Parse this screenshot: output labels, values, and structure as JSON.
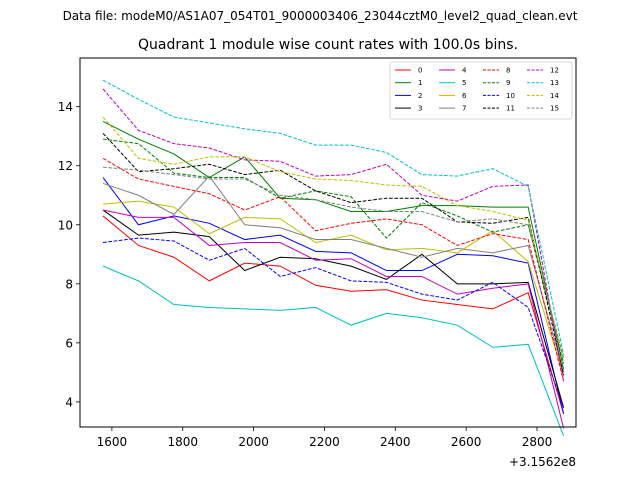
{
  "suptitle": "Data file: modeM0/AS1A07_054T01_9000003406_23044cztM0_level2_quad_clean.evt",
  "chart_data": {
    "type": "line",
    "title": "Quadrant 1 module wise count rates with 100.0s bins.",
    "xlabel": "",
    "ylabel": "",
    "x_offset_label": "+3.1562e8",
    "xlim": [
      1510,
      2910
    ],
    "ylim": [
      3.15,
      15.65
    ],
    "xticks": [
      1600,
      1800,
      2000,
      2200,
      2400,
      2600,
      2800
    ],
    "xtick_labels": [
      "1600",
      "1800",
      "2000",
      "2200",
      "2400",
      "2600",
      "2800"
    ],
    "yticks": [
      4,
      6,
      8,
      10,
      12,
      14
    ],
    "ytick_labels": [
      "4",
      "6",
      "8",
      "10",
      "12",
      "14"
    ],
    "grid": false,
    "legend_position": "top-right",
    "x": [
      1575,
      1675,
      1775,
      1875,
      1975,
      2075,
      2175,
      2275,
      2375,
      2475,
      2575,
      2675,
      2775,
      2875
    ],
    "series": [
      {
        "name": "0",
        "color": "#ff0000",
        "style": "solid",
        "values": [
          10.3,
          9.3,
          8.9,
          8.1,
          8.7,
          8.6,
          7.95,
          7.75,
          7.8,
          7.45,
          7.3,
          7.15,
          7.7,
          3.6
        ]
      },
      {
        "name": "1",
        "color": "#008000",
        "style": "solid",
        "values": [
          13.5,
          12.9,
          12.4,
          11.6,
          12.3,
          10.9,
          10.85,
          10.45,
          10.45,
          10.65,
          10.65,
          10.6,
          10.6,
          5.1
        ]
      },
      {
        "name": "2",
        "color": "#0000ff",
        "style": "solid",
        "values": [
          11.6,
          10.0,
          10.3,
          10.05,
          9.5,
          9.65,
          9.1,
          9.05,
          8.45,
          8.45,
          9.0,
          8.95,
          8.7,
          3.6
        ]
      },
      {
        "name": "3",
        "color": "#000000",
        "style": "solid",
        "values": [
          10.5,
          9.65,
          9.75,
          9.6,
          8.45,
          8.9,
          8.85,
          8.6,
          8.15,
          9.0,
          8.0,
          8.0,
          8.05,
          3.8
        ]
      },
      {
        "name": "4",
        "color": "#bf00bf",
        "style": "solid",
        "values": [
          10.5,
          10.25,
          10.25,
          9.3,
          9.4,
          9.4,
          8.8,
          8.85,
          8.25,
          8.25,
          7.65,
          7.85,
          8.0,
          3.1
        ]
      },
      {
        "name": "5",
        "color": "#00bfbf",
        "style": "solid",
        "values": [
          8.6,
          8.1,
          7.3,
          7.2,
          7.15,
          7.1,
          7.2,
          6.6,
          7.0,
          6.85,
          6.6,
          5.85,
          5.95,
          2.85
        ]
      },
      {
        "name": "6",
        "color": "#bfbf00",
        "style": "solid",
        "values": [
          10.7,
          10.8,
          10.6,
          9.7,
          10.25,
          10.2,
          9.4,
          9.65,
          9.15,
          9.2,
          9.05,
          9.8,
          8.75,
          4.9
        ]
      },
      {
        "name": "7",
        "color": "#808080",
        "style": "solid",
        "values": [
          11.4,
          11.0,
          10.35,
          11.65,
          10.0,
          9.9,
          9.5,
          9.5,
          9.2,
          8.9,
          9.2,
          9.05,
          9.3,
          5.0
        ]
      },
      {
        "name": "8",
        "color": "#ff0000",
        "style": "dashed",
        "values": [
          12.25,
          11.55,
          11.3,
          11.05,
          10.5,
          10.95,
          9.8,
          10.05,
          10.2,
          10.0,
          9.3,
          9.7,
          9.5,
          4.7
        ]
      },
      {
        "name": "9",
        "color": "#008000",
        "style": "dashed",
        "values": [
          12.9,
          12.75,
          11.75,
          11.6,
          11.6,
          10.9,
          11.15,
          10.95,
          9.55,
          10.75,
          10.3,
          9.75,
          10.0,
          5.3
        ]
      },
      {
        "name": "10",
        "color": "#0000ff",
        "style": "dashed",
        "values": [
          9.4,
          9.55,
          9.45,
          8.8,
          9.2,
          8.25,
          8.55,
          8.1,
          8.05,
          7.65,
          7.45,
          8.05,
          7.2,
          3.8
        ]
      },
      {
        "name": "11",
        "color": "#000000",
        "style": "dashed",
        "values": [
          13.1,
          11.8,
          11.9,
          12.05,
          11.7,
          11.85,
          11.15,
          10.75,
          10.9,
          10.9,
          10.1,
          10.05,
          10.25,
          4.9
        ]
      },
      {
        "name": "12",
        "color": "#bf00bf",
        "style": "dashed",
        "values": [
          14.6,
          13.2,
          12.75,
          12.6,
          12.2,
          12.15,
          11.65,
          11.7,
          12.05,
          11.0,
          10.8,
          11.3,
          11.35,
          4.7
        ]
      },
      {
        "name": "13",
        "color": "#00bfbf",
        "style": "dashed",
        "values": [
          14.9,
          14.25,
          13.65,
          13.45,
          13.25,
          13.1,
          12.7,
          12.7,
          12.45,
          11.7,
          11.65,
          11.9,
          11.3,
          5.6
        ]
      },
      {
        "name": "14",
        "color": "#bfbf00",
        "style": "dashed",
        "values": [
          13.65,
          12.25,
          12.05,
          12.3,
          12.3,
          11.8,
          11.55,
          11.5,
          11.35,
          11.3,
          10.65,
          10.45,
          10.15,
          5.4
        ]
      },
      {
        "name": "15",
        "color": "#808080",
        "style": "dashed",
        "values": [
          11.95,
          11.85,
          11.7,
          11.55,
          11.55,
          11.0,
          10.85,
          10.6,
          10.45,
          10.45,
          10.1,
          10.2,
          10.0,
          5.5
        ]
      }
    ]
  }
}
